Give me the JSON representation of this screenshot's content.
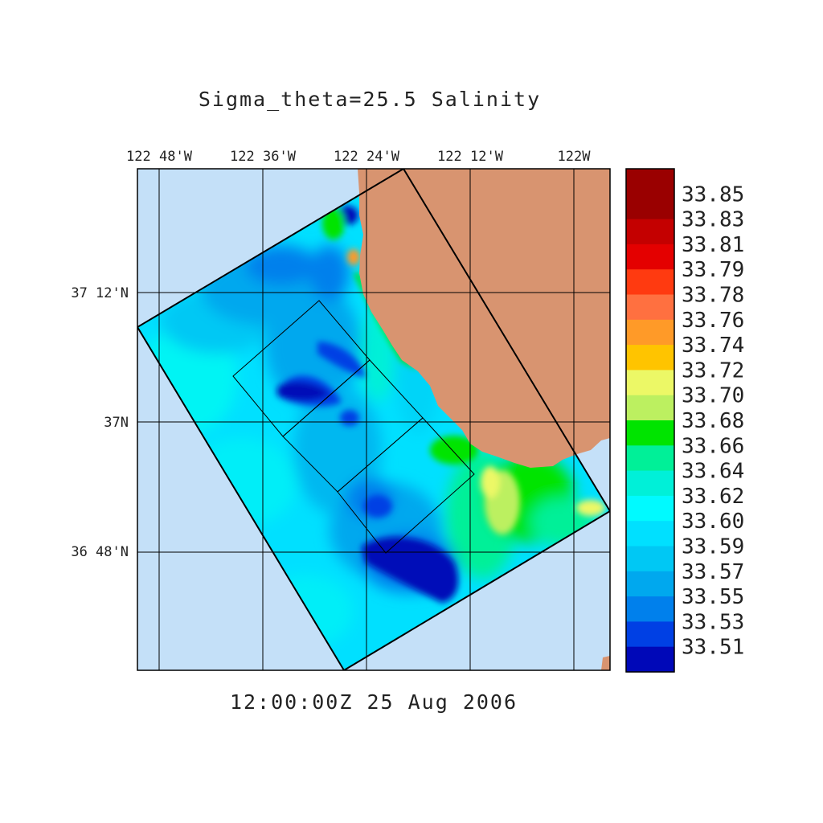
{
  "title": "Sigma_theta=25.5 Salinity",
  "timestamp": "12:00:00Z  25 Aug 2006",
  "lon_ticks": [
    "122 48'W",
    "122 36'W",
    "122 24'W",
    "122 12'W",
    "122W"
  ],
  "lat_ticks": [
    "37 12'N",
    "37N",
    "36 48'N"
  ],
  "colorbar": {
    "labels": [
      "33.85",
      "33.83",
      "33.81",
      "33.79",
      "33.78",
      "33.76",
      "33.74",
      "33.72",
      "33.70",
      "33.68",
      "33.66",
      "33.64",
      "33.62",
      "33.60",
      "33.59",
      "33.57",
      "33.55",
      "33.53",
      "33.51"
    ],
    "colors": [
      "#9a0000",
      "#c40000",
      "#e40000",
      "#ff3a10",
      "#ff7040",
      "#ff9a28",
      "#ffc400",
      "#ecf866",
      "#bcf060",
      "#00e400",
      "#00f098",
      "#00f0d8",
      "#00faff",
      "#00e0ff",
      "#00c8f4",
      "#00a8ee",
      "#0080ec",
      "#0040e4",
      "#0008b8"
    ]
  },
  "colors": {
    "ocean": "#c4e0f8",
    "land": "#d89470",
    "frame": "#000000",
    "text": "#222222"
  }
}
